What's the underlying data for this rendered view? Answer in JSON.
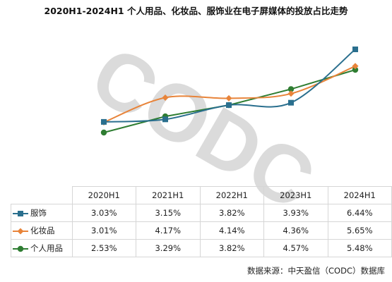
{
  "title": "2020H1-2024H1 个人用品、化妆品、服饰业在电子屏媒体的投放占比走势",
  "watermark": "CODC",
  "source": "数据来源：中天盈信（CODC）数据库",
  "chart_data": {
    "type": "line",
    "title": "2020H1-2024H1 个人用品、化妆品、服饰业在电子屏媒体的投放占比走势",
    "categories": [
      "2020H1",
      "2021H1",
      "2022H1",
      "2023H1",
      "2024H1"
    ],
    "series": [
      {
        "name": "服饰",
        "values": [
          3.03,
          3.15,
          3.82,
          3.93,
          6.44
        ],
        "labels": [
          "3.03%",
          "3.15%",
          "3.82%",
          "3.93%",
          "6.44%"
        ],
        "color": "#2a6f8e",
        "marker": "square",
        "smooth": true
      },
      {
        "name": "化妆品",
        "values": [
          3.01,
          4.17,
          4.14,
          4.36,
          5.65
        ],
        "labels": [
          "3.01%",
          "4.17%",
          "4.14%",
          "4.36%",
          "5.65%"
        ],
        "color": "#e8843a",
        "marker": "diamond",
        "smooth": true
      },
      {
        "name": "个人用品",
        "values": [
          2.53,
          3.29,
          3.82,
          4.57,
          5.48
        ],
        "labels": [
          "2.53%",
          "3.29%",
          "3.82%",
          "4.57%",
          "5.48%"
        ],
        "color": "#2f7d32",
        "marker": "circle",
        "smooth": false
      }
    ],
    "ylim": [
      0,
      7
    ],
    "grid": false,
    "legend": "data-table"
  }
}
